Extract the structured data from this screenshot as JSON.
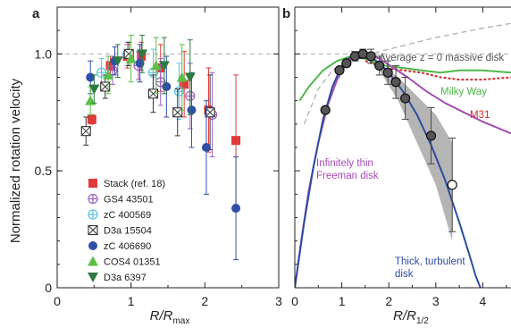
{
  "chart_data": [
    {
      "panel": "a",
      "type": "scatter",
      "xlabel": "R/R",
      "xlabel_sub": "max",
      "ylabel": "Normalized rotation velocity",
      "xlim": [
        0,
        3
      ],
      "ylim": [
        0,
        1.2
      ],
      "xticks": [
        "0",
        "1",
        "2",
        "3"
      ],
      "yticks": [
        "0",
        "0.5",
        "1.0"
      ],
      "reference_line_y": 1.0,
      "legend_position": "lower-left",
      "series": [
        {
          "name": "Stack (ref. 18)",
          "marker": "square",
          "color": "#e03a3a",
          "points": [
            {
              "x": 0.47,
              "y": 0.72,
              "err": 0.02
            },
            {
              "x": 0.72,
              "y": 0.95,
              "err": 0.04
            },
            {
              "x": 0.95,
              "y": 0.99,
              "err": 0.05
            },
            {
              "x": 1.14,
              "y": 0.99,
              "err": 0.06
            },
            {
              "x": 1.4,
              "y": 0.94,
              "err": 0.1
            },
            {
              "x": 1.72,
              "y": 0.87,
              "err": 0.14
            },
            {
              "x": 2.05,
              "y": 0.76,
              "err": 0.18
            },
            {
              "x": 2.42,
              "y": 0.63,
              "err": 0.28
            }
          ]
        },
        {
          "name": "GS4 43501",
          "marker": "circle-plus",
          "color": "#9b5fc0",
          "points": [
            {
              "x": 0.75,
              "y": 0.93,
              "err": 0.06
            },
            {
              "x": 1.1,
              "y": 0.95,
              "err": 0.06
            },
            {
              "x": 1.4,
              "y": 0.88,
              "err": 0.1
            },
            {
              "x": 1.8,
              "y": 0.82,
              "err": 0.14
            },
            {
              "x": 2.1,
              "y": 0.74,
              "err": 0.18
            }
          ]
        },
        {
          "name": "zC 400569",
          "marker": "circle-plus",
          "color": "#5fc0e0",
          "points": [
            {
              "x": 0.6,
              "y": 0.92,
              "err": 0.06
            },
            {
              "x": 0.95,
              "y": 1.0,
              "err": 0.05
            },
            {
              "x": 1.3,
              "y": 0.92,
              "err": 0.1
            },
            {
              "x": 1.65,
              "y": 0.84,
              "err": 0.12
            }
          ]
        },
        {
          "name": "D3a 15504",
          "marker": "square-x",
          "color": "#333333",
          "points": [
            {
              "x": 0.39,
              "y": 0.67,
              "err": 0.06
            },
            {
              "x": 0.65,
              "y": 0.86,
              "err": 0.05
            },
            {
              "x": 0.97,
              "y": 1.0,
              "err": 0.05
            },
            {
              "x": 1.3,
              "y": 0.83,
              "err": 0.08
            },
            {
              "x": 1.63,
              "y": 0.75,
              "err": 0.1
            },
            {
              "x": 2.07,
              "y": 0.75,
              "err": 0.16
            }
          ]
        },
        {
          "name": "zC 406690",
          "marker": "circle",
          "color": "#2f4fa8",
          "points": [
            {
              "x": 0.45,
              "y": 0.9,
              "err": 0.07
            },
            {
              "x": 0.78,
              "y": 0.97,
              "err": 0.06
            },
            {
              "x": 1.12,
              "y": 0.96,
              "err": 0.08
            },
            {
              "x": 1.48,
              "y": 0.86,
              "err": 0.13
            },
            {
              "x": 1.82,
              "y": 0.76,
              "err": 0.16
            },
            {
              "x": 2.02,
              "y": 0.6,
              "err": 0.2
            },
            {
              "x": 2.42,
              "y": 0.34,
              "err": 0.22
            }
          ]
        },
        {
          "name": "COS4 01351",
          "marker": "triangle-up",
          "color": "#5cbf45",
          "points": [
            {
              "x": 0.45,
              "y": 0.8,
              "err": 0.06
            },
            {
              "x": 0.69,
              "y": 0.91,
              "err": 0.08
            },
            {
              "x": 1.0,
              "y": 0.98,
              "err": 0.1
            },
            {
              "x": 1.34,
              "y": 0.95,
              "err": 0.12
            },
            {
              "x": 1.69,
              "y": 0.9,
              "err": 0.14
            }
          ]
        },
        {
          "name": "D3a 6397",
          "marker": "triangle-down",
          "color": "#2f7a40",
          "points": [
            {
              "x": 0.5,
              "y": 0.85,
              "err": 0.06
            },
            {
              "x": 0.82,
              "y": 0.97,
              "err": 0.07
            },
            {
              "x": 1.15,
              "y": 1.0,
              "err": 0.08
            },
            {
              "x": 1.45,
              "y": 0.95,
              "err": 0.12
            },
            {
              "x": 1.8,
              "y": 0.9,
              "err": 0.16
            }
          ]
        }
      ]
    },
    {
      "panel": "b",
      "type": "line",
      "xlabel": "R/R",
      "xlabel_sub": "1/2",
      "xlim": [
        0,
        4.6
      ],
      "ylim": [
        0,
        1.2
      ],
      "xticks": [
        "0",
        "1",
        "2",
        "3",
        "4"
      ],
      "reference_line_y": 1.0,
      "data_points": {
        "x": [
          0.65,
          0.95,
          1.1,
          1.28,
          1.45,
          1.62,
          1.8,
          1.98,
          2.15,
          2.35,
          2.9,
          3.35
        ],
        "y": [
          0.76,
          0.93,
          0.96,
          0.99,
          1.0,
          0.99,
          0.95,
          0.92,
          0.88,
          0.81,
          0.65,
          0.44
        ],
        "err": [
          0.01,
          0.01,
          0.01,
          0.02,
          0.02,
          0.03,
          0.04,
          0.05,
          0.07,
          0.09,
          0.12,
          0.2
        ]
      },
      "band": {
        "x": [
          1.45,
          1.8,
          2.2,
          2.6,
          3.0,
          3.35
        ],
        "lower": [
          1.0,
          0.93,
          0.8,
          0.62,
          0.44,
          0.2
        ],
        "upper": [
          1.0,
          0.96,
          0.9,
          0.82,
          0.74,
          0.62
        ]
      },
      "curves": [
        {
          "label": "Average z = 0 massive disk",
          "color": "#aaaaaa",
          "style": "dashed",
          "x": [
            0.2,
            0.5,
            0.8,
            1.1,
            1.4,
            1.8,
            2.2,
            2.6,
            3.0,
            3.5,
            4.0,
            4.6
          ],
          "y": [
            0.7,
            0.85,
            0.93,
            0.97,
            0.99,
            1.01,
            1.03,
            1.05,
            1.07,
            1.09,
            1.11,
            1.13
          ]
        },
        {
          "label": "Milky Way",
          "color": "#4fb848",
          "style": "solid",
          "x": [
            0.1,
            0.3,
            0.6,
            0.9,
            1.2,
            1.5,
            1.9,
            2.3,
            2.7,
            3.1,
            3.5,
            4.0,
            4.6
          ],
          "y": [
            0.8,
            0.86,
            0.93,
            0.97,
            0.99,
            0.98,
            0.95,
            0.94,
            0.93,
            0.92,
            0.93,
            0.93,
            0.92
          ]
        },
        {
          "label": "M31",
          "color": "#d02a2a",
          "style": "dotted",
          "x": [
            1.5,
            1.9,
            2.3,
            2.7,
            3.1,
            3.5,
            4.0,
            4.6
          ],
          "y": [
            0.97,
            0.94,
            0.93,
            0.92,
            0.9,
            0.89,
            0.89,
            0.9
          ]
        },
        {
          "label": "Infinitely thin Freeman disk",
          "color": "#a64cb2",
          "style": "solid",
          "x": [
            0.0,
            0.15,
            0.3,
            0.5,
            0.7,
            0.9,
            1.1,
            1.3,
            1.5,
            1.8,
            2.1,
            2.4,
            2.8,
            3.2,
            3.6,
            4.0,
            4.6
          ],
          "y": [
            0.0,
            0.22,
            0.42,
            0.62,
            0.78,
            0.89,
            0.96,
            0.995,
            1.0,
            0.98,
            0.94,
            0.9,
            0.84,
            0.79,
            0.75,
            0.71,
            0.66
          ]
        },
        {
          "label": "Thick, turbulent disk",
          "color": "#2e4ca0",
          "style": "solid",
          "x": [
            0.0,
            0.2,
            0.4,
            0.6,
            0.8,
            1.0,
            1.2,
            1.4,
            1.6,
            1.8,
            2.0,
            2.3,
            2.6,
            2.9,
            3.2,
            3.5,
            3.7,
            3.85,
            3.95
          ],
          "y": [
            0.0,
            0.28,
            0.52,
            0.72,
            0.86,
            0.95,
            0.99,
            1.0,
            0.99,
            0.96,
            0.92,
            0.84,
            0.74,
            0.61,
            0.46,
            0.28,
            0.15,
            0.05,
            0.0
          ]
        }
      ],
      "annotations": [
        {
          "text": "Average z = 0 massive disk",
          "color": "#555555"
        },
        {
          "text": "Milky Way",
          "color": "#4fb848"
        },
        {
          "text": "M31",
          "color": "#d02a2a"
        },
        {
          "text": "Infinitely thin",
          "color": "#a64cb2"
        },
        {
          "text": "Freeman disk",
          "color": "#a64cb2"
        },
        {
          "text": "Thick, turbulent",
          "color": "#2e4ca0"
        },
        {
          "text": "disk",
          "color": "#2e4ca0"
        }
      ]
    }
  ]
}
